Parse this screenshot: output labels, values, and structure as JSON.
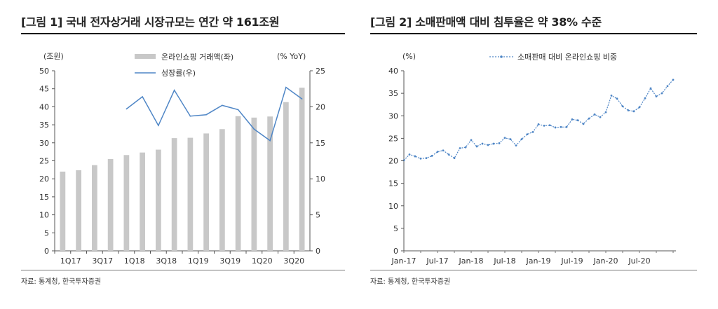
{
  "chart_data": [
    {
      "type": "bar+line",
      "title": "[그림 1] 국내 전자상거래 시장규모는 연간 약 161조원",
      "left_unit": "(조원)",
      "right_unit": "(% YoY)",
      "source": "자료: 통계청, 한국투자증권",
      "categories": [
        "1Q17",
        "2Q17",
        "3Q17",
        "4Q17",
        "1Q18",
        "2Q18",
        "3Q18",
        "4Q18",
        "1Q19",
        "2Q19",
        "3Q19",
        "4Q19",
        "1Q20",
        "2Q20",
        "3Q20",
        "4Q20"
      ],
      "xtick_labels": [
        "1Q17",
        "",
        "3Q17",
        "",
        "1Q18",
        "",
        "3Q18",
        "",
        "1Q19",
        "",
        "3Q19",
        "",
        "1Q20",
        "",
        "3Q20",
        ""
      ],
      "ylim_left": [
        0,
        50
      ],
      "yticks_left": [
        0,
        5,
        10,
        15,
        20,
        25,
        30,
        35,
        40,
        45,
        50
      ],
      "ylim_right": [
        0,
        25
      ],
      "yticks_right": [
        0,
        5,
        10,
        15,
        20,
        25
      ],
      "legend_position": "top",
      "series": [
        {
          "name": "온라인쇼핑 거래액(좌)",
          "kind": "bar",
          "axis": "left",
          "color": "#c8c8c8",
          "values": [
            22.0,
            22.4,
            23.8,
            25.5,
            26.6,
            27.3,
            28.1,
            31.3,
            31.4,
            32.6,
            33.8,
            37.4,
            37.0,
            37.3,
            41.3,
            45.3
          ]
        },
        {
          "name": "성장률(우)",
          "kind": "line",
          "axis": "right",
          "color": "#4f86c6",
          "values": [
            null,
            null,
            null,
            null,
            19.7,
            21.4,
            17.4,
            22.3,
            18.7,
            18.9,
            20.2,
            19.6,
            16.9,
            15.3,
            22.7,
            21.1
          ]
        }
      ]
    },
    {
      "type": "line",
      "title": "[그림 2] 소매판매액 대비 침투율은 약 38% 수준",
      "left_unit": "(%)",
      "source": "자료: 통계청, 한국투자증권",
      "xtick_labels": [
        "Jan-17",
        "Jul-17",
        "Jan-18",
        "Jul-18",
        "Jan-19",
        "Jul-19",
        "Jan-20",
        "Jul-20"
      ],
      "xtick_month_index": [
        0,
        6,
        12,
        18,
        24,
        30,
        36,
        42
      ],
      "ylim": [
        0,
        40
      ],
      "yticks": [
        0,
        5,
        10,
        15,
        20,
        25,
        30,
        35,
        40
      ],
      "legend_position": "top",
      "series": [
        {
          "name": "소매판매 대비 온라인쇼핑 비중",
          "color": "#4f86c6",
          "values": [
            20.1,
            21.4,
            21.0,
            20.5,
            20.6,
            21.1,
            22.0,
            22.3,
            21.4,
            20.6,
            22.8,
            23.0,
            24.6,
            23.2,
            23.8,
            23.5,
            23.8,
            23.9,
            25.1,
            24.8,
            23.4,
            24.8,
            25.9,
            26.4,
            28.1,
            27.8,
            27.9,
            27.4,
            27.5,
            27.5,
            29.2,
            29.0,
            28.2,
            29.4,
            30.3,
            29.7,
            30.8,
            34.5,
            33.8,
            32.1,
            31.2,
            31.0,
            31.9,
            33.9,
            36.1,
            34.3,
            35.0,
            36.6,
            38.0
          ]
        }
      ]
    }
  ]
}
